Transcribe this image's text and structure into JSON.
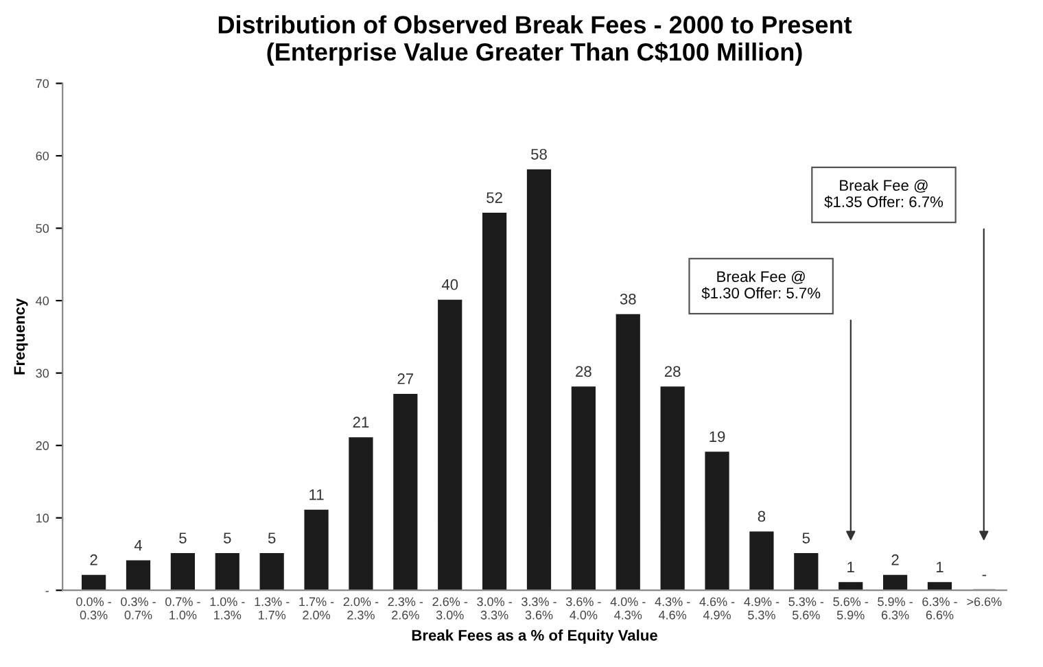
{
  "chart_data": {
    "type": "bar",
    "title": "Distribution of Observed Break Fees - 2000 to Present\n(Enterprise Value Greater Than C$100 Million)",
    "xlabel": "Break Fees as a % of Equity Value",
    "ylabel": "Frequency",
    "categories": [
      "0.0% -\n0.3%",
      "0.3% -\n0.7%",
      "0.7% -\n1.0%",
      "1.0% -\n1.3%",
      "1.3% -\n1.7%",
      "1.7% -\n2.0%",
      "2.0% -\n2.3%",
      "2.3% -\n2.6%",
      "2.6% -\n3.0%",
      "3.0% -\n3.3%",
      "3.3% -\n3.6%",
      "3.6% -\n4.0%",
      "4.0% -\n4.3%",
      "4.3% -\n4.6%",
      "4.6% -\n4.9%",
      "4.9% -\n5.3%",
      "5.3% -\n5.6%",
      "5.6% -\n5.9%",
      "5.9% -\n6.3%",
      "6.3% -\n6.6%",
      ">6.6%"
    ],
    "values": [
      2,
      4,
      5,
      5,
      5,
      11,
      21,
      27,
      40,
      52,
      58,
      28,
      38,
      28,
      19,
      8,
      5,
      1,
      2,
      1,
      0
    ],
    "value_labels": [
      "2",
      "4",
      "5",
      "5",
      "5",
      "11",
      "21",
      "27",
      "40",
      "52",
      "58",
      "28",
      "38",
      "28",
      "19",
      "8",
      "5",
      "1",
      "2",
      "1",
      "-"
    ],
    "color": "#1c1c1c",
    "ylim": [
      0,
      70
    ],
    "yticks": [
      {
        "value": 0,
        "label": "-"
      },
      10,
      20,
      30,
      40,
      50,
      60,
      70
    ],
    "grid": false,
    "legend": false,
    "annotations": [
      "Break Fee @\n$1.30 Offer: 5.7%",
      "Break Fee @\n$1.35 Offer: 6.7%"
    ]
  }
}
